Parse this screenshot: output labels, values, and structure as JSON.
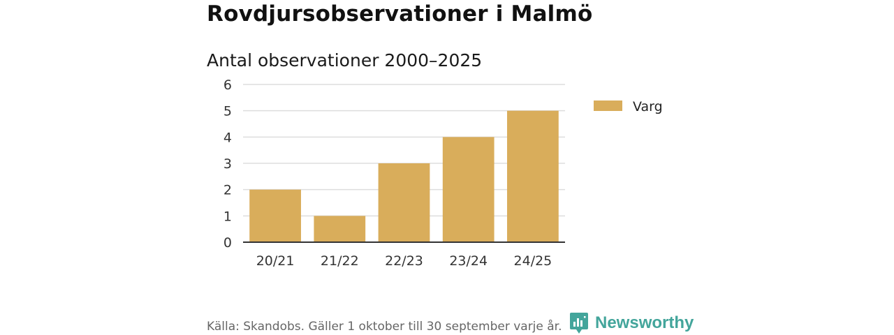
{
  "page_title": "Rovdjursobservationer i Malmö",
  "chart_data": {
    "type": "bar",
    "title": "Antal observationer 2000–2025",
    "categories": [
      "20/21",
      "21/22",
      "22/23",
      "23/24",
      "24/25"
    ],
    "series": [
      {
        "name": "Varg",
        "values": [
          2,
          1,
          3,
          4,
          5
        ],
        "color": "#d9ad5b"
      }
    ],
    "y_ticks": [
      "0",
      "1",
      "2",
      "3",
      "4",
      "5",
      "6"
    ],
    "ylim": [
      0,
      6
    ],
    "xlabel": "",
    "ylabel": "",
    "grid": true,
    "legend": "right"
  },
  "footer": {
    "source": "Källa: Skandobs. Gäller 1 oktober till 30 september varje år.",
    "brand": "Newsworthy",
    "brand_color": "#43a59b"
  }
}
